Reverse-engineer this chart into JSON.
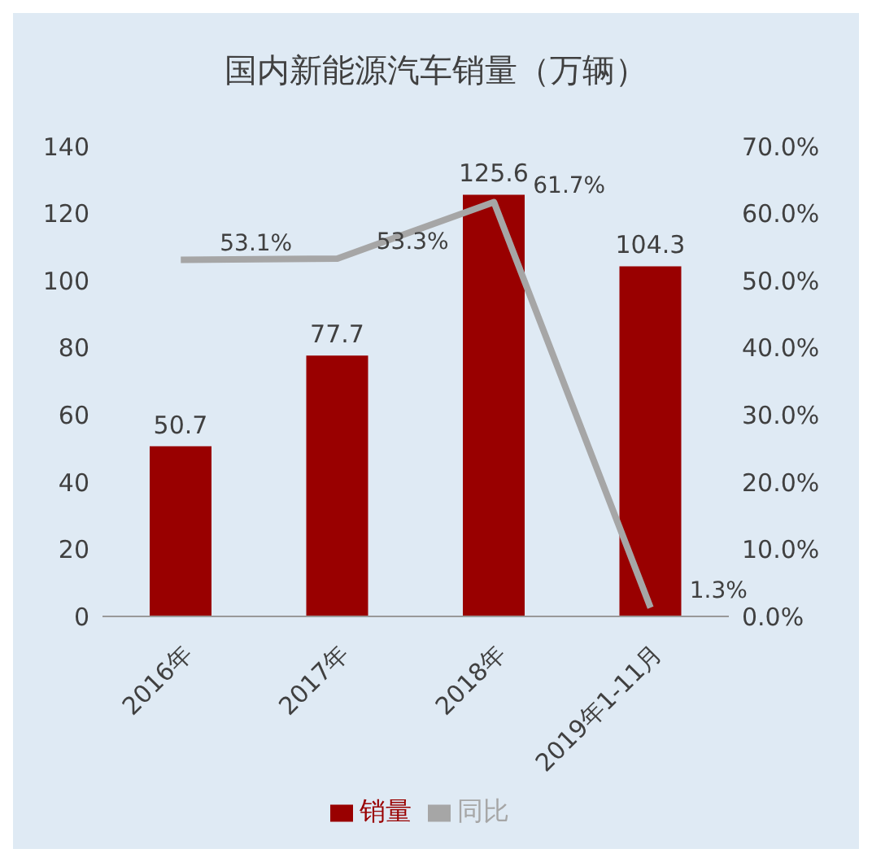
{
  "chart_data": {
    "type": "bar",
    "title": "国内新能源汽车销量（万辆）",
    "categories": [
      "2016年",
      "2017年",
      "2018年",
      "2019年1-11月"
    ],
    "series": [
      {
        "name": "销量",
        "color": "#990000",
        "values": [
          50.7,
          77.7,
          125.6,
          104.3
        ],
        "value_labels": [
          "50.7",
          "77.7",
          "125.6",
          "104.3"
        ]
      },
      {
        "name": "同比",
        "type": "line",
        "axis": "y2",
        "color": "#a6a6a6",
        "values": [
          53.1,
          53.3,
          61.7,
          1.3
        ],
        "value_labels": [
          "53.1%",
          "53.3%",
          "61.7%",
          "1.3%"
        ]
      }
    ],
    "ylim": [
      0,
      140
    ],
    "yticks": [
      0,
      20,
      40,
      60,
      80,
      100,
      120,
      140
    ],
    "y2lim": [
      0,
      70
    ],
    "y2ticks": [
      {
        "value": 0,
        "label": "0.0%"
      },
      {
        "value": 10,
        "label": "10.0%"
      },
      {
        "value": 20,
        "label": "20.0%"
      },
      {
        "value": 30,
        "label": "30.0%"
      },
      {
        "value": 40,
        "label": "40.0%"
      },
      {
        "value": 50,
        "label": "50.0%"
      },
      {
        "value": 60,
        "label": "60.0%"
      },
      {
        "value": 70,
        "label": "70.0%"
      }
    ],
    "legend": "bottom",
    "marker": "none"
  }
}
